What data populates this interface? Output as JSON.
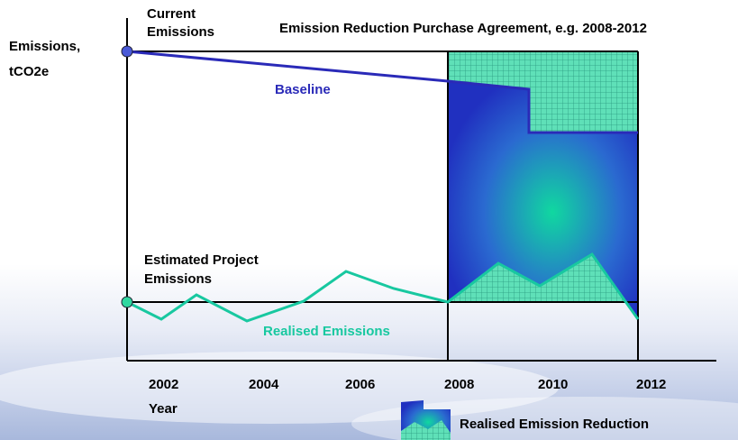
{
  "title": "Emission Reduction Purchase Agreement, e.g. 2008-2012",
  "y_axis_label": [
    "Emissions,",
    "tCO2e"
  ],
  "current_emissions_label": [
    "Current",
    "Emissions"
  ],
  "baseline_label": "Baseline",
  "estimated_label": [
    "Estimated Project",
    "Emissions"
  ],
  "realised_label": "Realised Emissions",
  "years": [
    "2002",
    "2004",
    "2006",
    "2008",
    "2010",
    "2012"
  ],
  "x_axis_label": "Year",
  "legend": "Realised Emission Reduction"
}
